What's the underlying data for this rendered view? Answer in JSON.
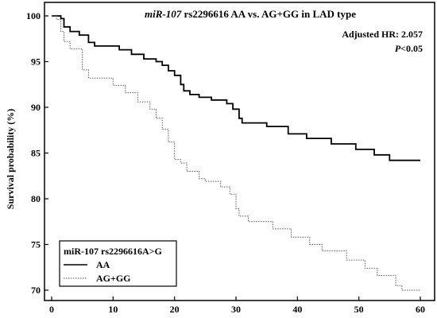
{
  "chart_data": {
    "type": "line",
    "title_italic": "miR-107",
    "title_rest": " rs2296616 AA vs. AG+GG in LAD type",
    "annotations": {
      "hr": "Adjusted HR: 2.057",
      "p_italic": "P",
      "p_rest": "<0.05"
    },
    "xlabel": "",
    "ylabel": "Survival probability (%)",
    "xlim": [
      0,
      60
    ],
    "ylim": [
      70,
      100
    ],
    "x_ticks": [
      0,
      10,
      20,
      30,
      40,
      50,
      60
    ],
    "y_ticks": [
      70,
      75,
      80,
      85,
      90,
      95,
      100
    ],
    "grid": false,
    "legend": {
      "title": "miR-107 rs2296616A>G",
      "placement": "bottom-left"
    },
    "series": [
      {
        "name": "AA",
        "style": "solid",
        "color": "#000000",
        "points": [
          [
            0,
            100
          ],
          [
            1.5,
            100
          ],
          [
            1.5,
            99.7
          ],
          [
            2,
            99.7
          ],
          [
            2,
            98.8
          ],
          [
            3,
            98.8
          ],
          [
            3,
            98.3
          ],
          [
            4.5,
            98.3
          ],
          [
            4.5,
            97.9
          ],
          [
            6,
            97.9
          ],
          [
            6,
            97.1
          ],
          [
            7,
            97.1
          ],
          [
            7,
            96.7
          ],
          [
            11,
            96.7
          ],
          [
            11,
            96.3
          ],
          [
            13,
            96.3
          ],
          [
            13,
            95.8
          ],
          [
            15,
            95.8
          ],
          [
            15,
            95.3
          ],
          [
            17,
            95.3
          ],
          [
            17,
            95.0
          ],
          [
            18,
            95.0
          ],
          [
            18,
            94.6
          ],
          [
            19,
            94.6
          ],
          [
            19,
            94.0
          ],
          [
            20,
            94.0
          ],
          [
            20,
            93.5
          ],
          [
            21,
            93.5
          ],
          [
            21,
            92.5
          ],
          [
            21.5,
            92.5
          ],
          [
            21.5,
            91.8
          ],
          [
            22.5,
            91.8
          ],
          [
            22.5,
            91.4
          ],
          [
            24,
            91.4
          ],
          [
            24,
            91.1
          ],
          [
            26,
            91.1
          ],
          [
            26,
            90.8
          ],
          [
            28.5,
            90.8
          ],
          [
            28.5,
            90.4
          ],
          [
            29.5,
            90.4
          ],
          [
            29.5,
            89.8
          ],
          [
            30.5,
            89.8
          ],
          [
            30.5,
            88.8
          ],
          [
            31,
            88.8
          ],
          [
            31,
            88.3
          ],
          [
            35,
            88.3
          ],
          [
            35,
            87.9
          ],
          [
            38.5,
            87.9
          ],
          [
            38.5,
            87.1
          ],
          [
            41.5,
            87.1
          ],
          [
            41.5,
            86.6
          ],
          [
            45.5,
            86.6
          ],
          [
            45.5,
            86.0
          ],
          [
            49.5,
            86.0
          ],
          [
            49.5,
            85.4
          ],
          [
            52.5,
            85.4
          ],
          [
            52.5,
            84.8
          ],
          [
            55,
            84.8
          ],
          [
            55,
            84.2
          ],
          [
            60,
            84.2
          ]
        ]
      },
      {
        "name": "AG+GG",
        "style": "dotted",
        "color": "#555555",
        "points": [
          [
            0,
            100
          ],
          [
            0.8,
            100
          ],
          [
            0.8,
            99.6
          ],
          [
            1.5,
            99.6
          ],
          [
            1.5,
            98.3
          ],
          [
            2,
            98.3
          ],
          [
            2,
            97.2
          ],
          [
            3,
            97.2
          ],
          [
            3,
            96.4
          ],
          [
            5,
            96.4
          ],
          [
            5,
            94.1
          ],
          [
            6,
            94.1
          ],
          [
            6,
            93.2
          ],
          [
            10,
            93.2
          ],
          [
            10,
            92.4
          ],
          [
            12,
            92.4
          ],
          [
            12,
            91.6
          ],
          [
            14,
            91.6
          ],
          [
            14,
            90.6
          ],
          [
            16,
            90.6
          ],
          [
            16,
            89.8
          ],
          [
            17,
            89.8
          ],
          [
            17,
            88.8
          ],
          [
            18,
            88.8
          ],
          [
            18,
            87.6
          ],
          [
            19,
            87.6
          ],
          [
            19,
            86.2
          ],
          [
            20,
            86.2
          ],
          [
            20,
            84.3
          ],
          [
            21,
            84.3
          ],
          [
            21,
            83.9
          ],
          [
            22,
            83.9
          ],
          [
            22,
            83.0
          ],
          [
            24,
            83.0
          ],
          [
            24,
            82.2
          ],
          [
            25,
            82.2
          ],
          [
            25,
            81.9
          ],
          [
            27.5,
            81.9
          ],
          [
            27.5,
            81.3
          ],
          [
            29,
            81.3
          ],
          [
            29,
            80.5
          ],
          [
            30,
            80.5
          ],
          [
            30,
            78.9
          ],
          [
            30.5,
            78.9
          ],
          [
            30.5,
            78.1
          ],
          [
            32,
            78.1
          ],
          [
            32,
            77.5
          ],
          [
            36,
            77.5
          ],
          [
            36,
            76.7
          ],
          [
            39,
            76.7
          ],
          [
            39,
            75.8
          ],
          [
            42,
            75.8
          ],
          [
            42,
            75.0
          ],
          [
            44,
            75.0
          ],
          [
            44,
            74.3
          ],
          [
            48,
            74.3
          ],
          [
            48,
            73.3
          ],
          [
            51,
            73.3
          ],
          [
            51,
            72.4
          ],
          [
            53,
            72.4
          ],
          [
            53,
            71.6
          ],
          [
            56,
            71.6
          ],
          [
            56,
            70.5
          ],
          [
            57,
            70.5
          ],
          [
            57,
            70.0
          ],
          [
            60,
            70.0
          ]
        ]
      }
    ]
  }
}
